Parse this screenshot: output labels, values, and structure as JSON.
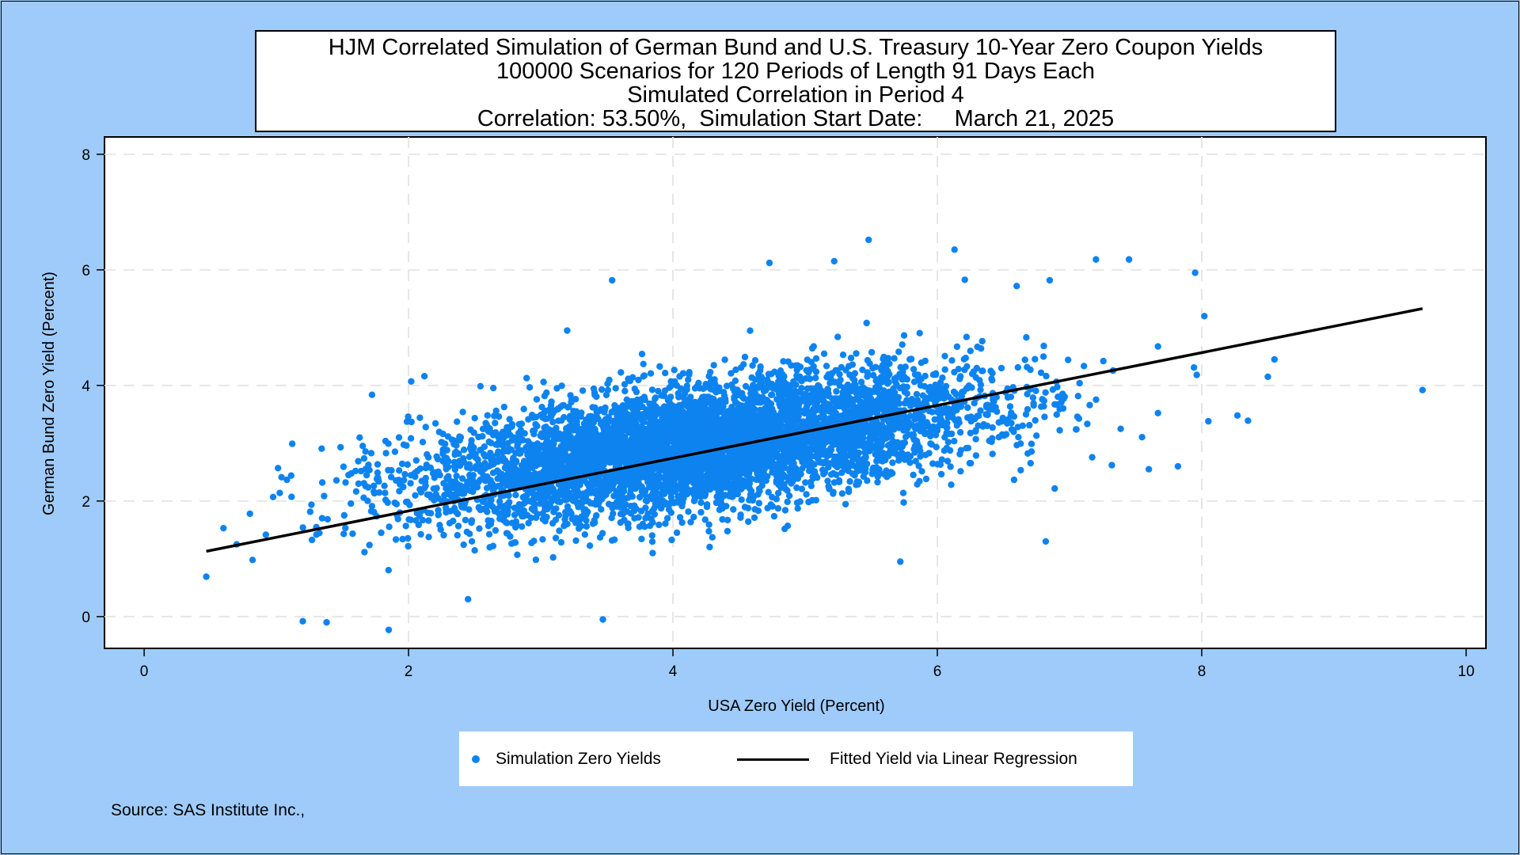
{
  "chart_data": {
    "type": "scatter",
    "title": [
      "HJM Correlated Simulation of German Bund and U.S. Treasury 10-Year Zero Coupon Yields",
      "100000 Scenarios for 120 Periods of Length 91 Days Each",
      "Simulated Correlation in Period 4",
      "Correlation: 53.50%,  Simulation Start Date:     March 21, 2025"
    ],
    "xlabel": "USA Zero Yield (Percent)",
    "ylabel": "German Bund Zero Yield (Percent)",
    "xlim": [
      -0.3,
      10.15
    ],
    "ylim": [
      -0.55,
      8.3
    ],
    "xticks": [
      0,
      2,
      4,
      6,
      8,
      10
    ],
    "yticks": [
      0,
      2,
      4,
      6,
      8
    ],
    "grid": true,
    "legend_position": "bottom",
    "colors": {
      "points": "#0d83f0",
      "line": "#000000",
      "background": "#9fcbfb",
      "plot_area": "#ffffff"
    },
    "series": [
      {
        "name": "Simulation Zero Yields",
        "kind": "scatter",
        "n": 100000,
        "cloud": {
          "x_mean": 4.2,
          "y_mean": 2.95,
          "x_sd": 1.05,
          "y_sd": 0.62,
          "correlation": 0.535
        },
        "points": [
          [
            0.47,
            0.69
          ],
          [
            0.6,
            1.53
          ],
          [
            0.7,
            1.25
          ],
          [
            0.8,
            1.78
          ],
          [
            0.82,
            0.98
          ],
          [
            1.12,
            2.99
          ],
          [
            1.2,
            -0.08
          ],
          [
            1.38,
            -0.1
          ],
          [
            1.85,
            -0.23
          ],
          [
            2.02,
            4.07
          ],
          [
            2.45,
            0.3
          ],
          [
            3.2,
            4.95
          ],
          [
            3.47,
            -0.05
          ],
          [
            3.54,
            5.82
          ],
          [
            4.73,
            6.12
          ],
          [
            5.22,
            6.15
          ],
          [
            5.48,
            6.52
          ],
          [
            5.72,
            0.95
          ],
          [
            6.13,
            6.35
          ],
          [
            6.6,
            5.72
          ],
          [
            6.85,
            5.82
          ],
          [
            7.2,
            6.18
          ],
          [
            7.45,
            6.18
          ],
          [
            7.82,
            2.6
          ],
          [
            7.95,
            5.95
          ],
          [
            8.02,
            5.2
          ],
          [
            8.05,
            3.38
          ],
          [
            8.27,
            3.48
          ],
          [
            8.35,
            3.39
          ],
          [
            8.5,
            4.15
          ],
          [
            8.55,
            4.45
          ],
          [
            9.67,
            3.92
          ],
          [
            6.82,
            1.3
          ],
          [
            7.6,
            2.55
          ],
          [
            7.32,
            2.62
          ]
        ]
      },
      {
        "name": "Fitted Yield via Linear Regression",
        "kind": "line",
        "points": [
          [
            0.47,
            1.13
          ],
          [
            9.67,
            5.33
          ]
        ]
      }
    ]
  },
  "legend": {
    "scatter_label": "Simulation Zero Yields",
    "line_label": "Fitted Yield via Linear Regression"
  },
  "source": "Source: SAS Institute Inc.,"
}
